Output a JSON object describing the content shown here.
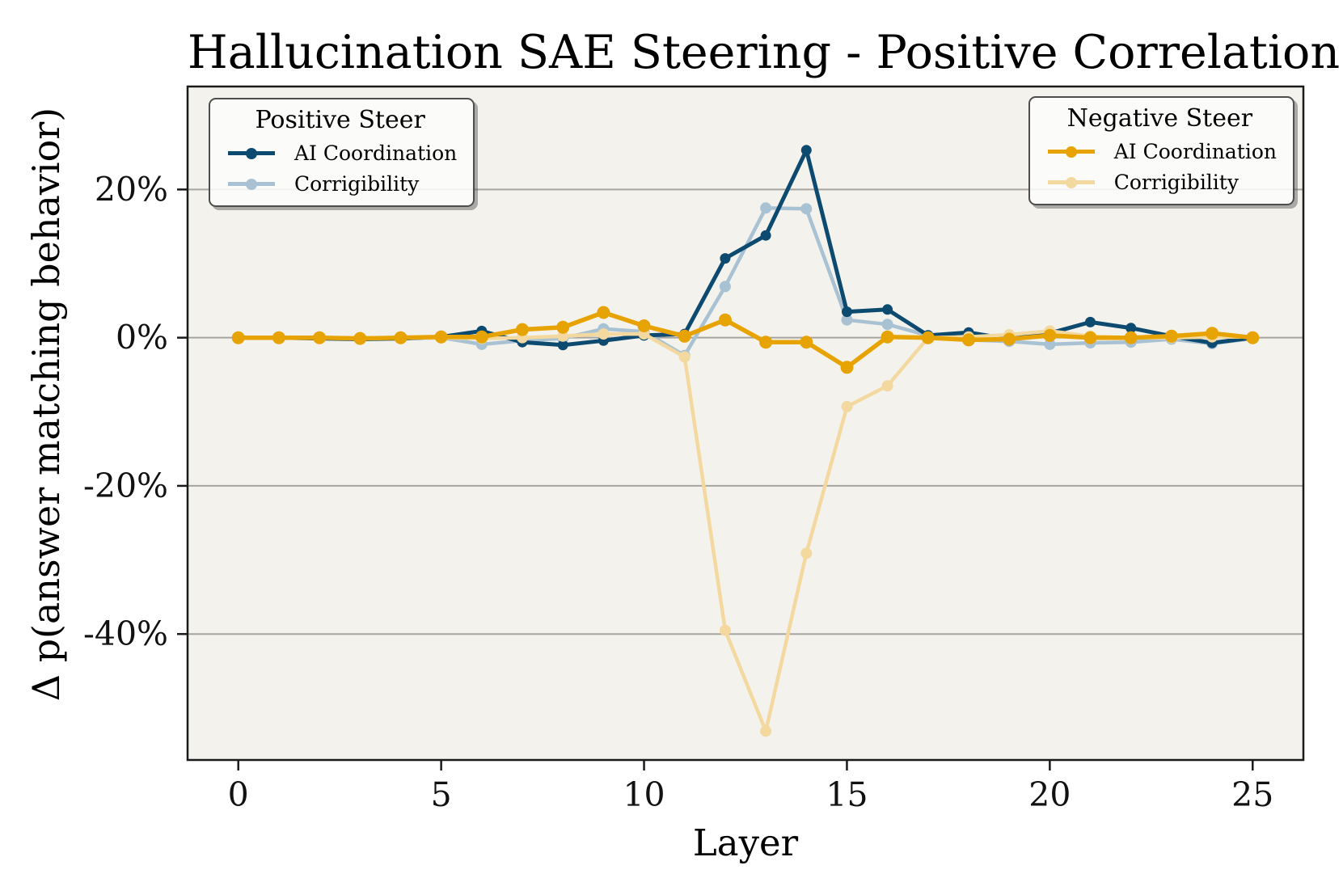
{
  "chart_data": {
    "type": "line",
    "title": "Hallucination SAE Steering - Positive Correlation",
    "xlabel": "Layer",
    "ylabel": "Δ p(answer matching behavior)",
    "x": [
      0,
      1,
      2,
      3,
      4,
      5,
      6,
      7,
      8,
      9,
      10,
      11,
      12,
      13,
      14,
      15,
      16,
      17,
      18,
      19,
      20,
      21,
      22,
      23,
      24,
      25
    ],
    "xticks": [
      0,
      5,
      10,
      15,
      20,
      25
    ],
    "yticks": [
      {
        "value": 20,
        "label": "20%"
      },
      {
        "value": 0,
        "label": "0%"
      },
      {
        "value": -20,
        "label": "-20%"
      },
      {
        "value": -40,
        "label": "-40%"
      }
    ],
    "xlim": [
      -1.25,
      26.25
    ],
    "ylim": [
      -57,
      33.9
    ],
    "grid": "horizontal-only",
    "plot_bg_color": "#f4f2ed",
    "grid_color": "#a6a4a0",
    "spine_color": "#1a1a1a",
    "series": [
      {
        "id": "pos-ai",
        "legend_group": "Positive Steer",
        "name": "AI Coordination",
        "color": "#0d4a70",
        "values": [
          0.0,
          0.0,
          -0.1,
          -0.2,
          -0.1,
          0.1,
          0.9,
          -0.6,
          -1.0,
          -0.4,
          0.3,
          0.5,
          10.7,
          13.8,
          25.3,
          3.5,
          3.8,
          0.3,
          0.7,
          -0.2,
          0.6,
          2.1,
          1.3,
          0.2,
          -0.7,
          0.0
        ]
      },
      {
        "id": "pos-corr",
        "legend_group": "Positive Steer",
        "name": "Corrigibility",
        "color": "#a9c2d3",
        "values": [
          0.0,
          0.0,
          0.0,
          -0.1,
          -0.1,
          0.0,
          -0.9,
          -0.4,
          -0.1,
          1.2,
          0.8,
          -2.4,
          6.9,
          17.5,
          17.4,
          2.4,
          1.8,
          0.3,
          -0.3,
          -0.5,
          -0.9,
          -0.7,
          -0.6,
          -0.2,
          -0.8,
          -0.1
        ]
      },
      {
        "id": "neg-ai",
        "legend_group": "Negative Steer",
        "name": "AI Coordination",
        "color": "#e7a302",
        "values": [
          0.0,
          0.0,
          0.0,
          -0.1,
          0.0,
          0.1,
          0.1,
          1.1,
          1.4,
          3.4,
          1.6,
          0.2,
          2.4,
          -0.6,
          -0.6,
          -4.0,
          0.1,
          0.0,
          -0.3,
          -0.2,
          0.3,
          0.0,
          0.0,
          0.2,
          0.6,
          0.0
        ]
      },
      {
        "id": "neg-corr",
        "legend_group": "Negative Steer",
        "name": "Corrigibility",
        "color": "#f3d9a0",
        "values": [
          0.0,
          0.0,
          0.0,
          0.0,
          0.0,
          0.0,
          -0.1,
          0.0,
          0.2,
          0.5,
          0.5,
          -2.6,
          -39.5,
          -53.1,
          -29.1,
          -9.3,
          -6.5,
          0.0,
          0.1,
          0.4,
          0.9,
          0.2,
          0.0,
          0.0,
          0.1,
          0.1
        ]
      }
    ],
    "legends": [
      {
        "id": "positive-steer",
        "title": "Positive Steer",
        "position": "upper-left",
        "items": [
          {
            "label": "AI Coordination",
            "color": "#0d4a70"
          },
          {
            "label": "Corrigibility",
            "color": "#a9c2d3"
          }
        ]
      },
      {
        "id": "negative-steer",
        "title": "Negative Steer",
        "position": "upper-right",
        "items": [
          {
            "label": "AI Coordination",
            "color": "#e7a302"
          },
          {
            "label": "Corrigibility",
            "color": "#f3d9a0"
          }
        ]
      }
    ]
  }
}
